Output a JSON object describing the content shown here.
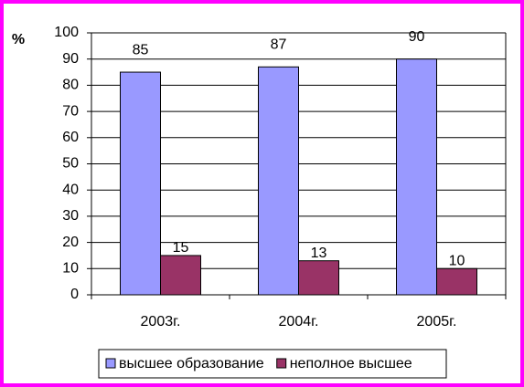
{
  "chart_data": {
    "type": "grouped_bar",
    "y_label": "%",
    "categories": [
      "2003г.",
      "2004г.",
      "2005г."
    ],
    "series": [
      {
        "name": "высшее образование",
        "color": "#9999ff",
        "values": [
          85,
          87,
          90
        ]
      },
      {
        "name": "неполное высшее",
        "color": "#993366",
        "values": [
          15,
          13,
          10
        ]
      }
    ],
    "ylim": [
      0,
      100
    ],
    "yticks": [
      0,
      10,
      20,
      30,
      40,
      50,
      60,
      70,
      80,
      90,
      100
    ],
    "grid": true,
    "legend": "bottom"
  }
}
